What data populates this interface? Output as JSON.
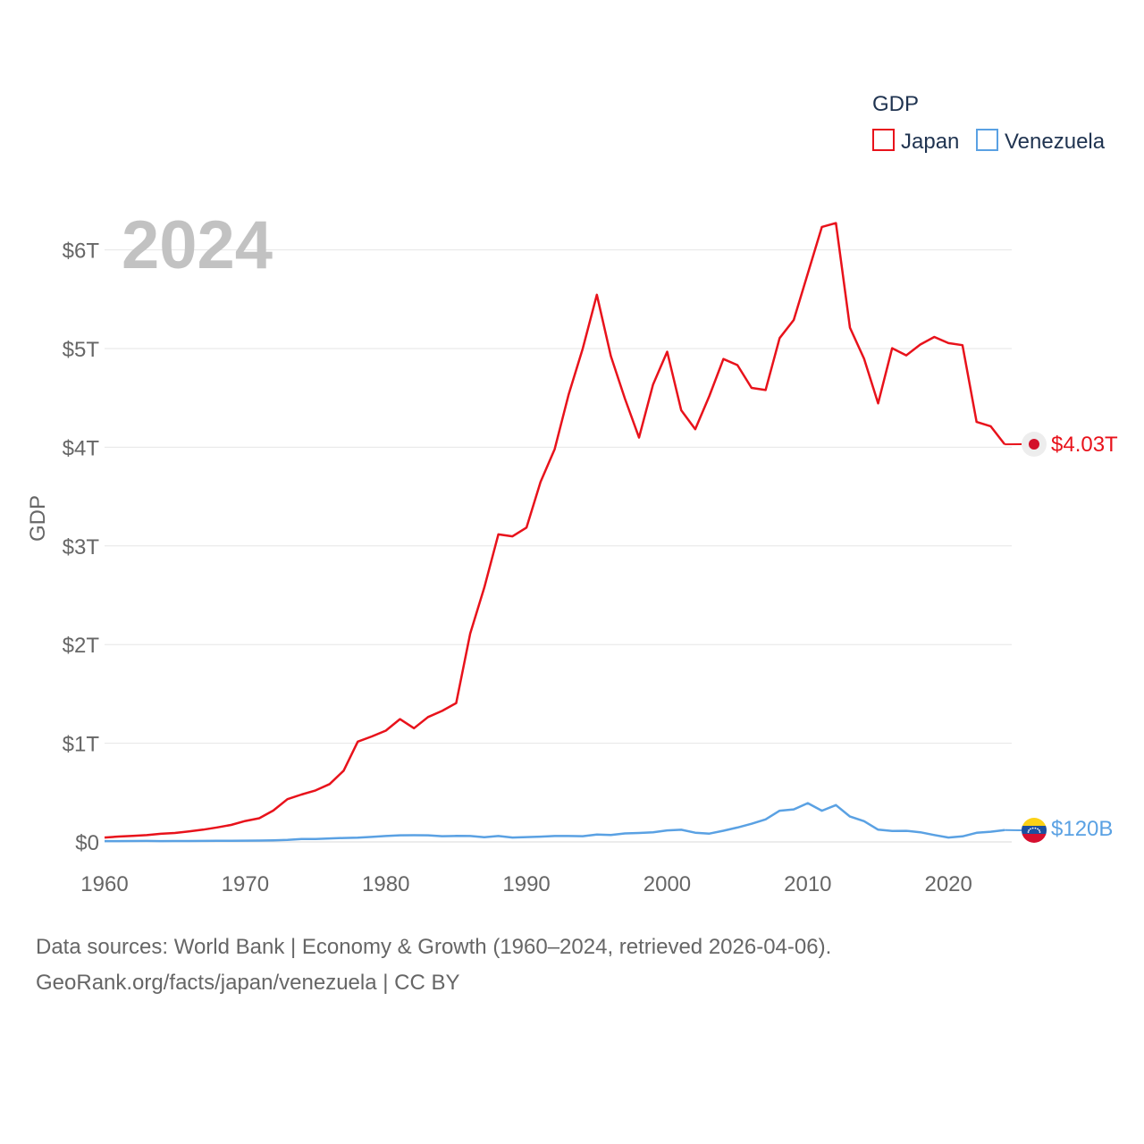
{
  "chart_data": {
    "type": "line",
    "title": "GDP",
    "year_label": "2024",
    "ylabel": "GDP",
    "xlim": [
      1960,
      2024.5
    ],
    "ylim": [
      0,
      6.3
    ],
    "y_unit": "trillion USD",
    "y_ticks": [
      {
        "value": 0,
        "label": "$0"
      },
      {
        "value": 1,
        "label": "$1T"
      },
      {
        "value": 2,
        "label": "$2T"
      },
      {
        "value": 3,
        "label": "$3T"
      },
      {
        "value": 4,
        "label": "$4T"
      },
      {
        "value": 5,
        "label": "$5T"
      },
      {
        "value": 6,
        "label": "$6T"
      }
    ],
    "x_ticks": [
      {
        "value": 1960,
        "label": "1960"
      },
      {
        "value": 1970,
        "label": "1970"
      },
      {
        "value": 1980,
        "label": "1980"
      },
      {
        "value": 1990,
        "label": "1990"
      },
      {
        "value": 2000,
        "label": "2000"
      },
      {
        "value": 2010,
        "label": "2010"
      },
      {
        "value": 2020,
        "label": "2020"
      }
    ],
    "x": [
      1960,
      1961,
      1962,
      1963,
      1964,
      1965,
      1966,
      1967,
      1968,
      1969,
      1970,
      1971,
      1972,
      1973,
      1974,
      1975,
      1976,
      1977,
      1978,
      1979,
      1980,
      1981,
      1982,
      1983,
      1984,
      1985,
      1986,
      1987,
      1988,
      1989,
      1990,
      1991,
      1992,
      1993,
      1994,
      1995,
      1996,
      1997,
      1998,
      1999,
      2000,
      2001,
      2002,
      2003,
      2004,
      2005,
      2006,
      2007,
      2008,
      2009,
      2010,
      2011,
      2012,
      2013,
      2014,
      2015,
      2016,
      2017,
      2018,
      2019,
      2020,
      2021,
      2022,
      2023,
      2024
    ],
    "series": [
      {
        "name": "Japan",
        "color": "#e8121b",
        "end_label": "$4.03T",
        "values": [
          0.044,
          0.054,
          0.061,
          0.069,
          0.082,
          0.091,
          0.106,
          0.124,
          0.147,
          0.172,
          0.212,
          0.24,
          0.318,
          0.433,
          0.48,
          0.522,
          0.586,
          0.722,
          1.016,
          1.069,
          1.128,
          1.245,
          1.152,
          1.265,
          1.328,
          1.407,
          2.111,
          2.579,
          3.117,
          3.097,
          3.186,
          3.649,
          3.98,
          4.536,
          4.999,
          5.545,
          4.923,
          4.493,
          4.098,
          4.636,
          4.968,
          4.375,
          4.183,
          4.52,
          4.894,
          4.832,
          4.601,
          4.58,
          5.106,
          5.29,
          5.76,
          6.233,
          6.272,
          5.212,
          4.897,
          4.445,
          5.004,
          4.931,
          5.041,
          5.118,
          5.055,
          5.034,
          4.256,
          4.213,
          4.03
        ]
      },
      {
        "name": "Venezuela",
        "color": "#5aa1e3",
        "end_label": "$120B",
        "values": [
          0.008,
          0.008,
          0.009,
          0.01,
          0.008,
          0.009,
          0.009,
          0.01,
          0.011,
          0.012,
          0.013,
          0.014,
          0.016,
          0.02,
          0.029,
          0.03,
          0.035,
          0.04,
          0.043,
          0.051,
          0.06,
          0.067,
          0.068,
          0.067,
          0.058,
          0.061,
          0.06,
          0.048,
          0.06,
          0.044,
          0.049,
          0.053,
          0.06,
          0.06,
          0.058,
          0.075,
          0.07,
          0.086,
          0.091,
          0.098,
          0.117,
          0.123,
          0.093,
          0.084,
          0.113,
          0.146,
          0.184,
          0.228,
          0.316,
          0.33,
          0.393,
          0.316,
          0.373,
          0.257,
          0.21,
          0.124,
          0.111,
          0.112,
          0.098,
          0.07,
          0.044,
          0.056,
          0.092,
          0.103,
          0.12
        ]
      }
    ]
  },
  "source_line1": "Data sources: World Bank | Economy & Growth (1960–2024, retrieved 2026-04-06).",
  "source_line2": "GeoRank.org/facts/japan/venezuela | CC BY",
  "flag_colors": {
    "japan_bg": "#ededed",
    "japan_disc": "#d3102a",
    "venezuela_top": "#fcd116",
    "venezuela_mid": "#1b4fa0",
    "venezuela_bottom": "#d60f2f",
    "venezuela_stars": "#ffffff"
  }
}
